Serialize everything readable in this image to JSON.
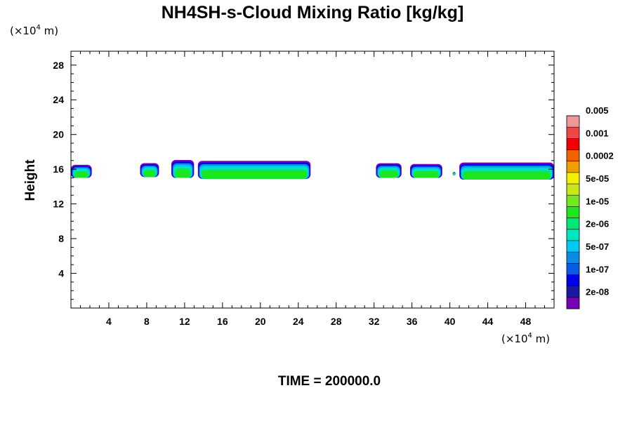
{
  "chart_data": {
    "type": "contour",
    "title": "NH4SH-s-Cloud Mixing Ratio [kg/kg]",
    "ylabel": "Height",
    "y_unit_prefix": "(×10",
    "unit_exp": "4",
    "unit_suffix": " m)",
    "x_unit_prefix": "(×10",
    "xlim": [
      0,
      51
    ],
    "ylim": [
      0,
      29.6
    ],
    "x_ticks": [
      4,
      8,
      12,
      16,
      20,
      24,
      28,
      32,
      36,
      40,
      44,
      48
    ],
    "x_tick_labels": [
      "4",
      "8",
      "12",
      "16",
      "20",
      "24",
      "28",
      "32",
      "36",
      "40",
      "44",
      "48"
    ],
    "y_ticks": [
      4,
      8,
      12,
      16,
      20,
      24,
      28
    ],
    "y_tick_labels": [
      "4",
      "8",
      "12",
      "16",
      "20",
      "24",
      "28"
    ],
    "time_label": "TIME = 200000.0",
    "legend": {
      "colors": [
        "#7a00b4",
        "#1a1aa0",
        "#0000e6",
        "#0a5ae6",
        "#0a8ce6",
        "#00c8f0",
        "#00e6be",
        "#00e678",
        "#1ee61e",
        "#78e61e",
        "#c8e61e",
        "#f0f000",
        "#f0a000",
        "#f06400",
        "#f00000",
        "#f04646",
        "#f09696"
      ],
      "labels": [
        "2e-08",
        "1e-07",
        "5e-07",
        "2e-06",
        "1e-05",
        "5e-05",
        "0.0002",
        "0.001",
        "0.005"
      ]
    },
    "cloud_regions": [
      {
        "x_start": 0.0,
        "x_end": 2.2,
        "y_bottom": 15.0,
        "y_top": 16.6
      },
      {
        "x_start": 7.3,
        "x_end": 9.3,
        "y_bottom": 15.1,
        "y_top": 16.8
      },
      {
        "x_start": 10.6,
        "x_end": 13.0,
        "y_bottom": 15.0,
        "y_top": 17.2
      },
      {
        "x_start": 13.4,
        "x_end": 25.3,
        "y_bottom": 14.9,
        "y_top": 17.1
      },
      {
        "x_start": 32.2,
        "x_end": 34.9,
        "y_bottom": 15.0,
        "y_top": 16.8
      },
      {
        "x_start": 35.8,
        "x_end": 39.2,
        "y_bottom": 15.0,
        "y_top": 16.7
      },
      {
        "x_start": 40.3,
        "x_end": 40.6,
        "y_bottom": 15.3,
        "y_top": 15.7
      },
      {
        "x_start": 41.0,
        "x_end": 51.0,
        "y_bottom": 14.8,
        "y_top": 16.9
      }
    ]
  }
}
